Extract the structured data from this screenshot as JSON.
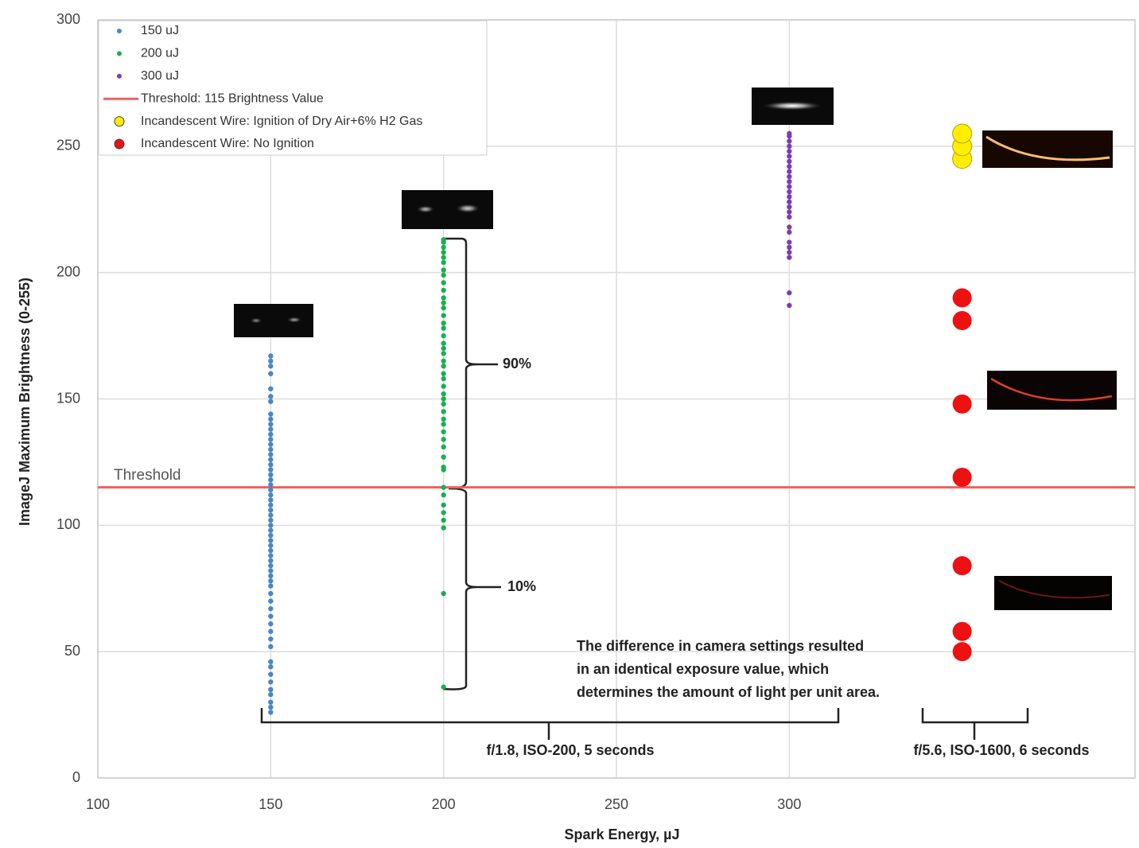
{
  "chart_data": {
    "type": "scatter",
    "xlabel": "Spark Energy, µJ",
    "ylabel": "ImageJ Maximum Brightness (0-255)",
    "xlim": [
      100,
      400
    ],
    "ylim": [
      0,
      300
    ],
    "xticks": [
      100,
      150,
      200,
      250,
      300
    ],
    "yticks": [
      0,
      50,
      100,
      150,
      200,
      250,
      300
    ],
    "grid": true,
    "legend": "upper left",
    "series": [
      {
        "name": "150 uJ",
        "color": "#4a86c8",
        "size": "small",
        "x": 150,
        "values": [
          26,
          28,
          30,
          33,
          35,
          38,
          41,
          44,
          46,
          52,
          55,
          58,
          61,
          64,
          67,
          70,
          73,
          76,
          78,
          80,
          82,
          84,
          86,
          88,
          90,
          92,
          94,
          96,
          98,
          100,
          102,
          104,
          106,
          108,
          110,
          112,
          114,
          116,
          118,
          120,
          122,
          124,
          126,
          128,
          130,
          132,
          134,
          136,
          138,
          140,
          142,
          144,
          149,
          151,
          154,
          160,
          163,
          165,
          167
        ]
      },
      {
        "name": "200 uJ",
        "color": "#18b050",
        "size": "small",
        "x": 200,
        "values": [
          36,
          73,
          99,
          102,
          105,
          108,
          112,
          115,
          122,
          123,
          127,
          131,
          134,
          137,
          140,
          142,
          145,
          148,
          150,
          152,
          155,
          158,
          160,
          163,
          165,
          168,
          170,
          172,
          175,
          178,
          180,
          183,
          186,
          188,
          190,
          193,
          196,
          199,
          201,
          204,
          206,
          208,
          210,
          212,
          213
        ]
      },
      {
        "name": "300 uJ",
        "color": "#7a3fb0",
        "size": "small",
        "x": 300,
        "values": [
          187,
          192,
          206,
          208,
          210,
          212,
          216,
          218,
          222,
          224,
          226,
          228,
          230,
          232,
          234,
          236,
          238,
          240,
          242,
          244,
          246,
          248,
          250,
          252,
          254,
          255
        ]
      },
      {
        "name": "Incandescent Wire: Ignition of Dry Air+6% H2 Gas",
        "color": "#ffee00",
        "size": "large",
        "x": 350,
        "values": [
          245,
          250,
          255
        ]
      },
      {
        "name": "Incandescent Wire: No Ignition",
        "color": "#ee1111",
        "size": "large",
        "x": 350,
        "values": [
          50,
          58,
          84,
          119,
          148,
          181,
          190
        ]
      }
    ],
    "threshold": {
      "name": "Threshold: 115 Brightness Value",
      "label": "Threshold",
      "value": 115,
      "color": "#f06060"
    },
    "annotations": {
      "upper_share": "90%",
      "lower_share": "10%",
      "note": [
        "The difference in camera settings resulted",
        "in an identical exposure value, which",
        "determines the amount of light per unit area."
      ],
      "settings_left": "f/1.8, ISO-200, 5 seconds",
      "settings_right": "f/5.6, ISO-1600, 6 seconds"
    }
  }
}
